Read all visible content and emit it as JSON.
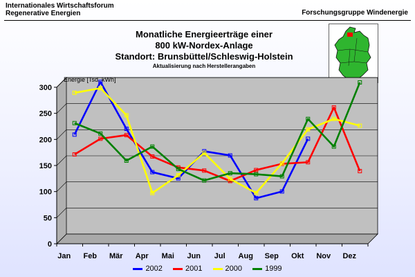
{
  "header": {
    "left_line1": "Internationales Wirtschaftsforum",
    "left_line2": "Regenerative Energien",
    "right": "Forschungsgruppe Windenergie"
  },
  "map_icon": "germany-map-icon",
  "chart_data": {
    "type": "line",
    "title_lines": [
      "Monatliche Energieerträge einer",
      "800 kW-Nordex-Anlage",
      "Standort: Brunsbüttel/Schleswig-Holstein"
    ],
    "subtitle": "Aktualisierung nach Herstellerangaben",
    "ylabel": "Energie [Tsd. kWh]",
    "xlabel": "",
    "ylim": [
      0,
      300
    ],
    "yticks": [
      0,
      50,
      100,
      150,
      200,
      250,
      300
    ],
    "grid": true,
    "legend_position": "bottom",
    "categories": [
      "Jan",
      "Feb",
      "Mär",
      "Apr",
      "Mai",
      "Jun",
      "Jul",
      "Aug",
      "Sep",
      "Okt",
      "Nov",
      "Dez"
    ],
    "series": [
      {
        "name": "2002",
        "color": "#0000ff",
        "values": [
          200,
          301,
          211,
          128,
          116,
          168,
          160,
          78,
          91,
          192,
          null,
          null
        ]
      },
      {
        "name": "2001",
        "color": "#ff0000",
        "values": [
          162,
          192,
          199,
          158,
          137,
          131,
          111,
          132,
          144,
          147,
          252,
          130
        ]
      },
      {
        "name": "2000",
        "color": "#ffff00",
        "values": [
          280,
          289,
          237,
          88,
          122,
          165,
          115,
          88,
          145,
          210,
          230,
          217
        ]
      },
      {
        "name": "1999",
        "color": "#008000",
        "values": [
          222,
          202,
          150,
          177,
          134,
          112,
          126,
          124,
          120,
          230,
          177,
          300
        ]
      }
    ]
  }
}
